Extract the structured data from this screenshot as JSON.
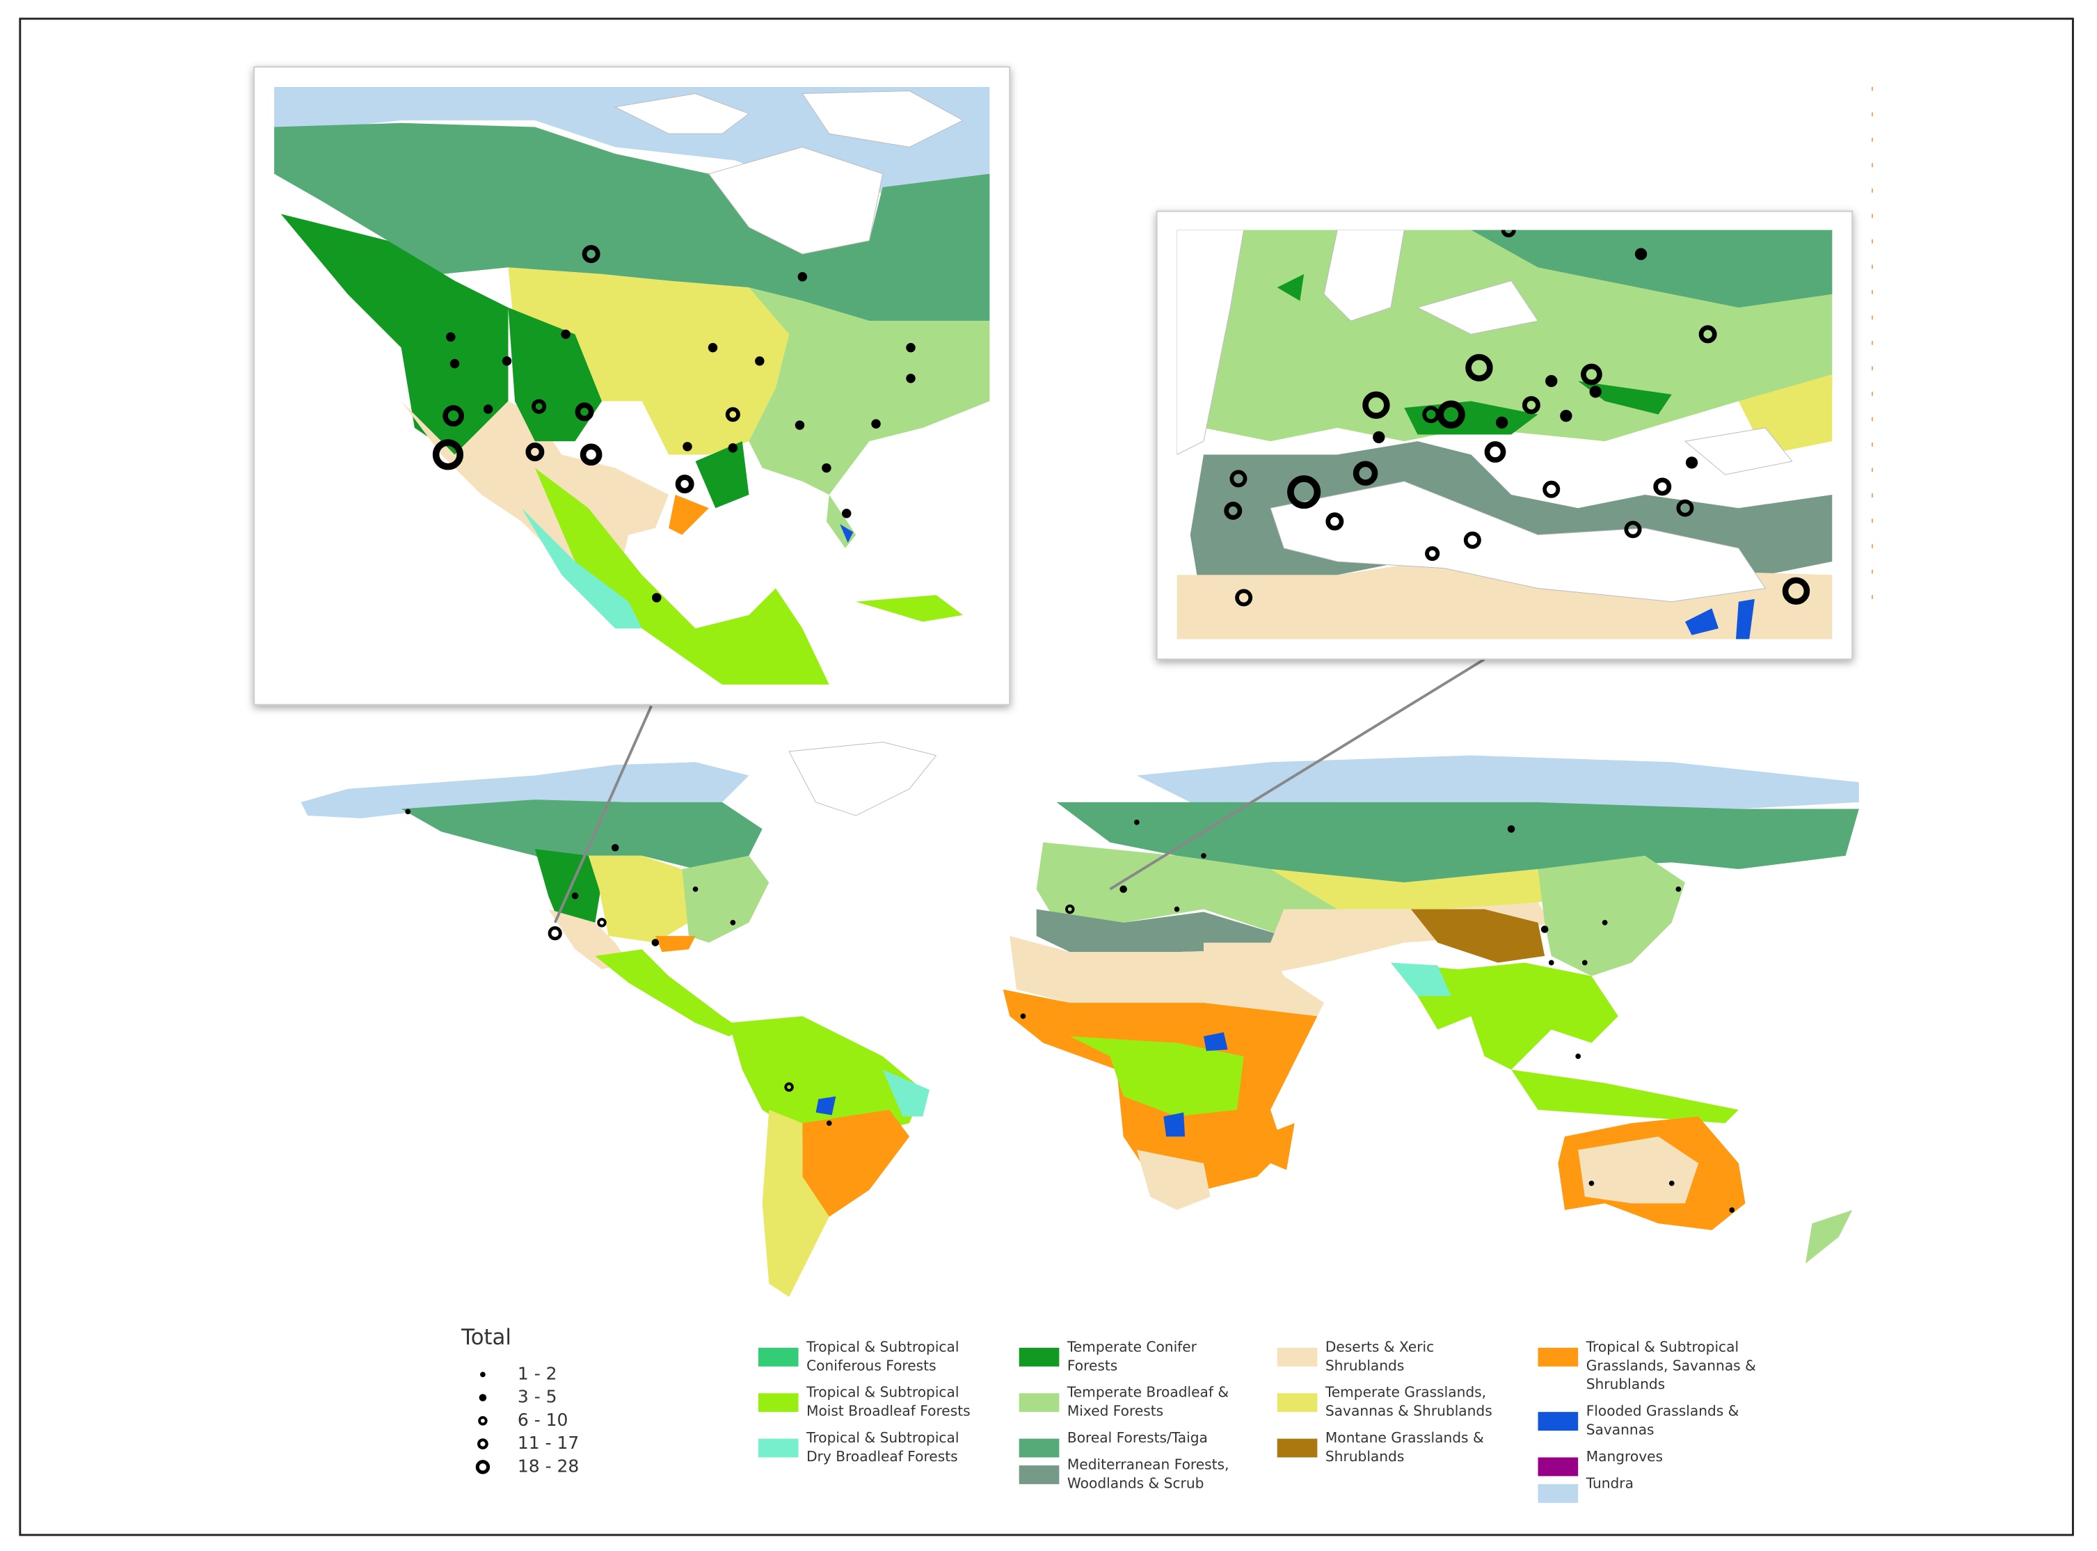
{
  "legend_total": {
    "title": "Total",
    "classes": [
      "1 - 2",
      "3 - 5",
      "6 - 10",
      "11 - 17",
      "18 - 28"
    ]
  },
  "legend_biomes": {
    "columns": [
      [
        {
          "label": [
            "Tropical & Subtropical",
            "Coniferous Forests"
          ],
          "color": "#33cc77"
        },
        {
          "label": [
            "Tropical & Subtropical",
            "Moist Broadleaf Forests"
          ],
          "color": "#99ee11"
        },
        {
          "label": [
            "Tropical & Subtropical",
            "Dry Broadleaf Forests"
          ],
          "color": "#77eecc"
        }
      ],
      [
        {
          "label": [
            "Temperate Conifer",
            "Forests"
          ],
          "color": "#119922"
        },
        {
          "label": [
            "Temperate Broadleaf &",
            "Mixed Forests"
          ],
          "color": "#aadd88"
        },
        {
          "label": [
            "Boreal Forests/Taiga"
          ],
          "color": "#55aa77"
        },
        {
          "label": [
            "Mediterranean Forests,",
            "Woodlands & Scrub"
          ],
          "color": "#779988"
        }
      ],
      [
        {
          "label": [
            "Deserts & Xeric",
            "Shrublands"
          ],
          "color": "#f5e2bd"
        },
        {
          "label": [
            "Temperate Grasslands,",
            "Savannas & Shrublands"
          ],
          "color": "#e8e866"
        },
        {
          "label": [
            "Montane Grasslands &",
            "Shrublands"
          ],
          "color": "#aa7711"
        }
      ],
      [
        {
          "label": [
            "Tropical & Subtropical",
            "Grasslands, Savannas &",
            "Shrublands"
          ],
          "color": "#ff9911"
        },
        {
          "label": [
            "Flooded Grasslands &",
            "Savannas"
          ],
          "color": "#1155dd"
        },
        {
          "label": [
            "Mangroves"
          ],
          "color": "#990088"
        },
        {
          "label": [
            "Tundra"
          ],
          "color": "#bbd8ee"
        }
      ]
    ]
  }
}
